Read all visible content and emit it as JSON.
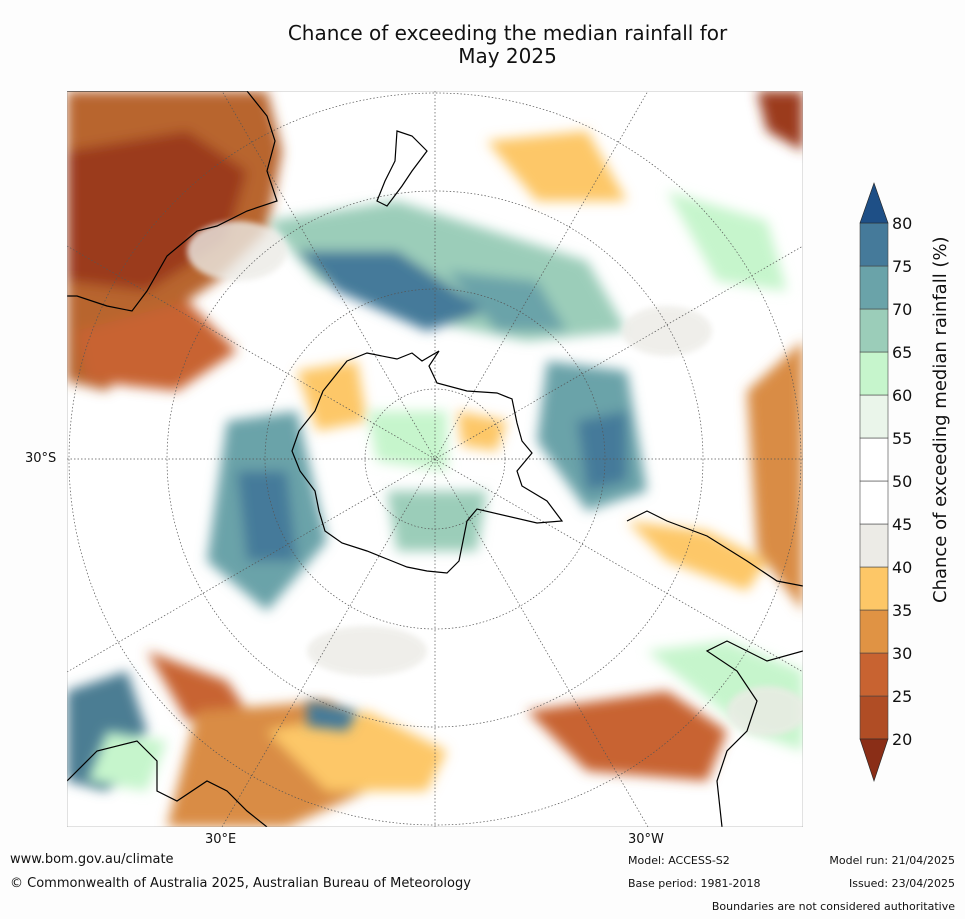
{
  "title": {
    "line1": "Chance of exceeding the median rainfall for",
    "line2": "May 2025"
  },
  "map": {
    "lat_label": "30°S",
    "lon_labels": [
      "30°E",
      "30°W"
    ],
    "projection": "south-polar-stereographic"
  },
  "colorbar": {
    "title": "Chance of exceeding median rainfall (%)",
    "ticks": [
      "20",
      "25",
      "30",
      "35",
      "40",
      "45",
      "50",
      "55",
      "60",
      "65",
      "70",
      "75",
      "80"
    ],
    "colors": [
      "#9b3a1d",
      "#b04d25",
      "#c86331",
      "#e09344",
      "#fdc767",
      "#ecebe6",
      "#ffffff",
      "#ffffff",
      "#eaf5ea",
      "#c6f5cc",
      "#9bcdb9",
      "#6aa3a9",
      "#457a9a",
      "#1e4f86"
    ],
    "min_extend_color": "#8a2e17",
    "max_extend_color": "#1e4f86"
  },
  "footer": {
    "url": "www.bom.gov.au/climate",
    "copyright": "© Commonwealth of Australia 2025, Australian Bureau of Meteorology",
    "model": "Model: ACCESS-S2",
    "base_period": "Base period: 1981-2018",
    "model_run": "Model run: 21/04/2025",
    "issued": "Issued: 23/04/2025",
    "disclaimer": "Boundaries are not considered authoritative"
  }
}
